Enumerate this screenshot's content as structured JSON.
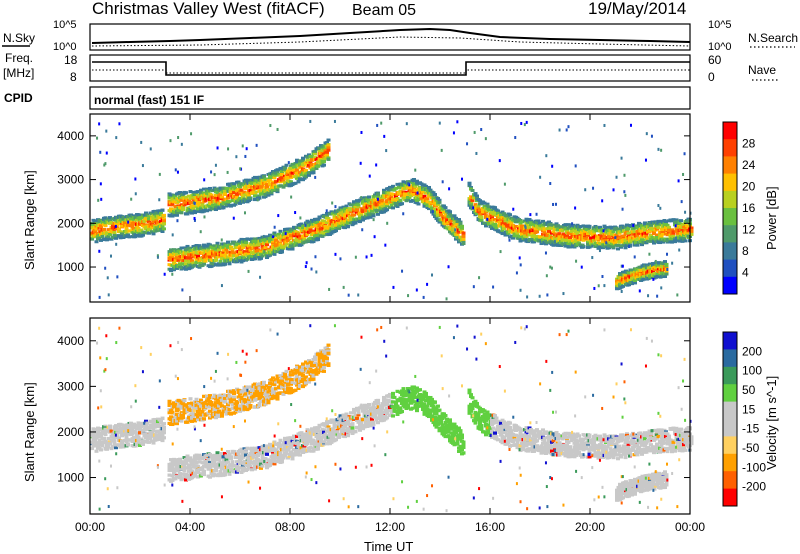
{
  "header": {
    "station": "Christmas Valley West (fitACF)",
    "beam": "Beam 05",
    "date": "19/May/2014"
  },
  "noise_panel": {
    "left_label": "N.Sky",
    "right_label": "N.Search",
    "left_ticks": [
      "10^5",
      "10^0"
    ],
    "right_ticks": [
      "10^5",
      "10^0"
    ]
  },
  "freq_panel": {
    "left_label_line1": "Freq.",
    "left_label_line2": "[MHz]",
    "right_label": "Nave",
    "left_ticks": [
      "18",
      "8"
    ],
    "right_ticks": [
      "60",
      "0"
    ]
  },
  "cpid": {
    "label": "CPID",
    "program": "normal (fast) 151 IF"
  },
  "x_axis": {
    "label": "Time UT",
    "ticks": [
      "00:00",
      "04:00",
      "08:00",
      "12:00",
      "16:00",
      "20:00",
      "00:00"
    ]
  },
  "colors": {
    "power_scale": [
      "#0000ff",
      "#2050c0",
      "#3a7a9a",
      "#4f9a6a",
      "#6ac040",
      "#b8d020",
      "#ffc000",
      "#ff8000",
      "#ff4000",
      "#ff0000"
    ],
    "velocity_scale": [
      "#ff0000",
      "#ff6000",
      "#ffa000",
      "#ffd060",
      "#c8c8c8",
      "#c8c8c8",
      "#60d040",
      "#3a9a5a",
      "#2a6aa0",
      "#1010d0"
    ]
  },
  "chart_data": [
    {
      "type": "heatmap",
      "title": "Power",
      "ylabel": "Slant Range [km]",
      "ylim": [
        200,
        4500
      ],
      "yticks": [
        1000,
        2000,
        3000,
        4000
      ],
      "xlim_hours": [
        0,
        24
      ],
      "colorbar": {
        "label": "Power [dB]",
        "ticks": [
          "28",
          "24",
          "20",
          "16",
          "12",
          "8",
          "4"
        ],
        "range": [
          0,
          30
        ]
      },
      "bands": [
        {
          "name": "morning-ionosphere",
          "x": [
            0,
            1,
            2,
            2.9
          ],
          "y": [
            1850,
            1950,
            2000,
            2100
          ]
        },
        {
          "name": "ground-scatter-A",
          "x": [
            3.1,
            5,
            7,
            9,
            11,
            12.8,
            13.5,
            14.2,
            14.9
          ],
          "y": [
            1200,
            1320,
            1500,
            1900,
            2400,
            2800,
            2600,
            2100,
            1750
          ]
        },
        {
          "name": "upper-arc",
          "x": [
            3.1,
            5,
            7,
            8.5,
            9.5
          ],
          "y": [
            2450,
            2600,
            2900,
            3300,
            3700
          ]
        },
        {
          "name": "post-sunset",
          "x": [
            15.1,
            15.5,
            17,
            19,
            21,
            22,
            24
          ],
          "y": [
            2700,
            2300,
            1900,
            1750,
            1700,
            1800,
            1900
          ]
        },
        {
          "name": "late-low",
          "x": [
            21,
            22,
            23
          ],
          "y": [
            700,
            900,
            1000
          ]
        }
      ]
    },
    {
      "type": "heatmap",
      "title": "Velocity",
      "ylabel": "Slant Range [km]",
      "ylim": [
        200,
        4500
      ],
      "yticks": [
        1000,
        2000,
        3000,
        4000
      ],
      "xlim_hours": [
        0,
        24
      ],
      "colorbar": {
        "label": "Velocity [m s^-1]",
        "ticks": [
          "200",
          "100",
          "50",
          "15",
          "-15",
          "-50",
          "-100",
          "-200"
        ],
        "range": [
          -250,
          250
        ]
      }
    }
  ]
}
